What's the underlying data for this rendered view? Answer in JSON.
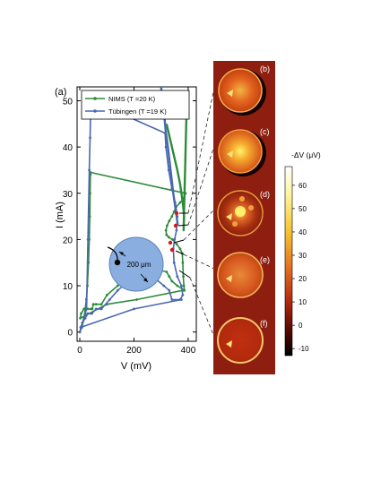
{
  "chart_data": {
    "type": "line",
    "panel_label": "(a)",
    "xlabel": "V (mV)",
    "ylabel": "I (mA)",
    "xlim": [
      -10,
      430
    ],
    "ylim": [
      -2,
      53
    ],
    "xticks": [
      0,
      200,
      400
    ],
    "yticks": [
      0,
      10,
      20,
      30,
      40,
      50
    ],
    "legend_position": "top",
    "series": [
      {
        "name": "NIMS  (T =20 K)",
        "color": "#2e8b3a",
        "points": [
          [
            0,
            0
          ],
          [
            8,
            1
          ],
          [
            15,
            3
          ],
          [
            20,
            5
          ],
          [
            24,
            7
          ],
          [
            28,
            10
          ],
          [
            32,
            15
          ],
          [
            35,
            20
          ],
          [
            37,
            25
          ],
          [
            38,
            30
          ],
          [
            39,
            34
          ],
          [
            40,
            34.5
          ],
          [
            390,
            30
          ],
          [
            385,
            29
          ],
          [
            370,
            28
          ],
          [
            355,
            27
          ],
          [
            348,
            26
          ],
          [
            340,
            25
          ],
          [
            330,
            24
          ],
          [
            322,
            23
          ],
          [
            318,
            22
          ],
          [
            320,
            21
          ],
          [
            328,
            20.5
          ],
          [
            342,
            20
          ],
          [
            358,
            19
          ],
          [
            370,
            18
          ],
          [
            378,
            17
          ],
          [
            380,
            15
          ],
          [
            382,
            12
          ],
          [
            384,
            10
          ],
          [
            386,
            9
          ],
          [
            360,
            10
          ],
          [
            340,
            11
          ],
          [
            330,
            12
          ],
          [
            320,
            13
          ],
          [
            250,
            14
          ],
          [
            220,
            13
          ],
          [
            180,
            12
          ],
          [
            140,
            10
          ],
          [
            100,
            8
          ],
          [
            80,
            6
          ],
          [
            60,
            6
          ],
          [
            50,
            6
          ],
          [
            46,
            5
          ],
          [
            42,
            5
          ],
          [
            30,
            5
          ],
          [
            15,
            5
          ],
          [
            5,
            4
          ],
          [
            2,
            3
          ],
          [
            100,
            6
          ],
          [
            210,
            7
          ],
          [
            380,
            9
          ]
        ],
        "upper_branch": [
          [
            320,
            45
          ],
          [
            340,
            40
          ],
          [
            360,
            35
          ],
          [
            370,
            32
          ],
          [
            380,
            28
          ],
          [
            385,
            25
          ],
          [
            383,
            22
          ],
          [
            395,
            50
          ]
        ]
      },
      {
        "name": "Tübingen  (T =19 K)",
        "color": "#4a67b0",
        "points": [
          [
            0,
            0
          ],
          [
            5,
            1
          ],
          [
            10,
            2
          ],
          [
            15,
            3
          ],
          [
            20,
            4
          ],
          [
            25,
            5
          ],
          [
            30,
            20
          ],
          [
            35,
            35
          ],
          [
            38,
            42
          ],
          [
            40,
            48
          ],
          [
            45,
            50
          ],
          [
            315,
            43
          ],
          [
            318,
            40
          ],
          [
            328,
            35
          ],
          [
            340,
            31
          ],
          [
            352,
            28
          ],
          [
            360,
            25
          ],
          [
            357,
            22
          ],
          [
            350,
            20
          ],
          [
            345,
            18
          ],
          [
            348,
            15
          ],
          [
            360,
            12
          ],
          [
            375,
            10
          ],
          [
            380,
            8
          ],
          [
            370,
            7
          ],
          [
            340,
            7
          ],
          [
            330,
            9
          ],
          [
            310,
            10
          ],
          [
            270,
            12
          ],
          [
            250,
            13
          ],
          [
            220,
            12
          ],
          [
            180,
            11
          ],
          [
            140,
            9
          ],
          [
            110,
            7
          ],
          [
            80,
            5
          ],
          [
            60,
            5
          ],
          [
            45,
            4
          ],
          [
            40,
            4
          ],
          [
            30,
            4
          ],
          [
            20,
            3
          ],
          [
            10,
            2
          ],
          [
            3,
            1
          ],
          [
            200,
            5
          ],
          [
            375,
            7
          ]
        ],
        "upper_branch": [
          [
            300,
            53
          ],
          [
            310,
            48
          ],
          [
            318,
            43
          ],
          [
            325,
            40
          ],
          [
            335,
            35
          ],
          [
            345,
            30
          ],
          [
            355,
            26
          ],
          [
            362,
            23
          ]
        ]
      }
    ],
    "inset": {
      "label": "200 μm"
    },
    "images": [
      {
        "label": "(b)"
      },
      {
        "label": "(c)"
      },
      {
        "label": "(d)"
      },
      {
        "label": "(e)"
      },
      {
        "label": "(f)"
      }
    ],
    "colorbar": {
      "label": "-ΔV (μV)",
      "ticks": [
        60,
        50,
        40,
        30,
        20,
        10,
        0,
        -10
      ]
    }
  }
}
